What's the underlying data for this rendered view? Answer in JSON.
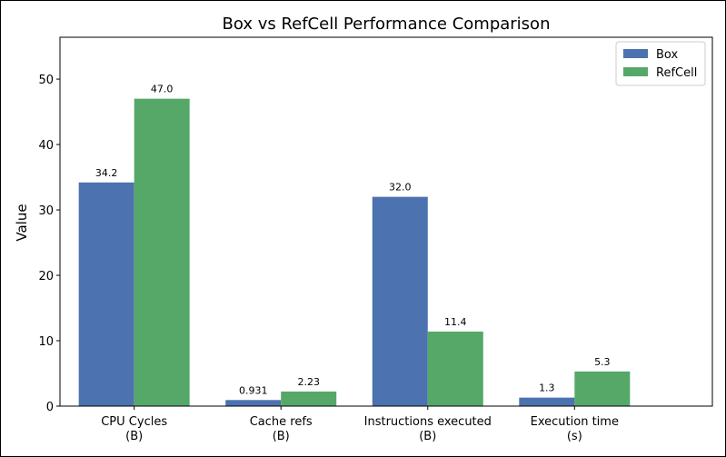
{
  "chart_data": {
    "type": "bar",
    "title": "Box vs RefCell Performance Comparison",
    "xlabel": "",
    "ylabel": "Value",
    "categories": [
      [
        "CPU Cycles",
        "(B)"
      ],
      [
        "Cache refs",
        "(B)"
      ],
      [
        "Instructions executed",
        "(B)"
      ],
      [
        "Execution time",
        "(s)"
      ]
    ],
    "series": [
      {
        "name": "Box",
        "color": "#4c72b0",
        "values": [
          34.2,
          0.931,
          32.0,
          1.3
        ],
        "labels": [
          "34.2",
          "0.931",
          "32.0",
          "1.3"
        ]
      },
      {
        "name": "RefCell",
        "color": "#55a868",
        "values": [
          47.0,
          2.23,
          11.4,
          5.3
        ],
        "labels": [
          "47.0",
          "2.23",
          "11.4",
          "5.3"
        ]
      }
    ],
    "ylim": [
      0,
      56.4
    ],
    "yticks": [
      0,
      10,
      20,
      30,
      40,
      50
    ],
    "grid": false,
    "legend_position": "top-right"
  }
}
